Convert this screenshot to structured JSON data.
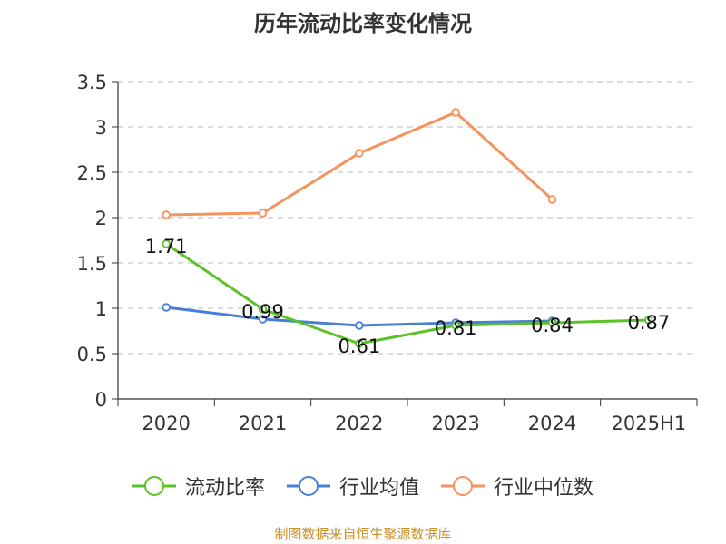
{
  "title": "历年流动比率变化情况",
  "source": "制图数据来自恒生聚源数据库",
  "chart_data": {
    "type": "line",
    "title": "历年流动比率变化情况",
    "categories": [
      "2020",
      "2021",
      "2022",
      "2023",
      "2024",
      "2025H1"
    ],
    "ylim": [
      0,
      3.5
    ],
    "yticks": [
      "0",
      "0.5",
      "1",
      "1.5",
      "2",
      "2.5",
      "3",
      "3.5"
    ],
    "grid": true,
    "legend_position": "bottom",
    "series": [
      {
        "name": "流动比率",
        "color": "#5cc22a",
        "values": [
          1.71,
          0.99,
          0.61,
          0.81,
          0.84,
          0.87
        ],
        "labels": [
          "1.71",
          "0.99",
          "0.61",
          "0.81",
          "0.84",
          "0.87"
        ]
      },
      {
        "name": "行业均值",
        "color": "#4a7fd6",
        "values": [
          1.01,
          0.88,
          0.81,
          0.84,
          0.86,
          null
        ],
        "labels": []
      },
      {
        "name": "行业中位数",
        "color": "#f4935e",
        "values": [
          2.03,
          2.05,
          2.71,
          3.16,
          2.2,
          null
        ],
        "labels": []
      }
    ]
  }
}
